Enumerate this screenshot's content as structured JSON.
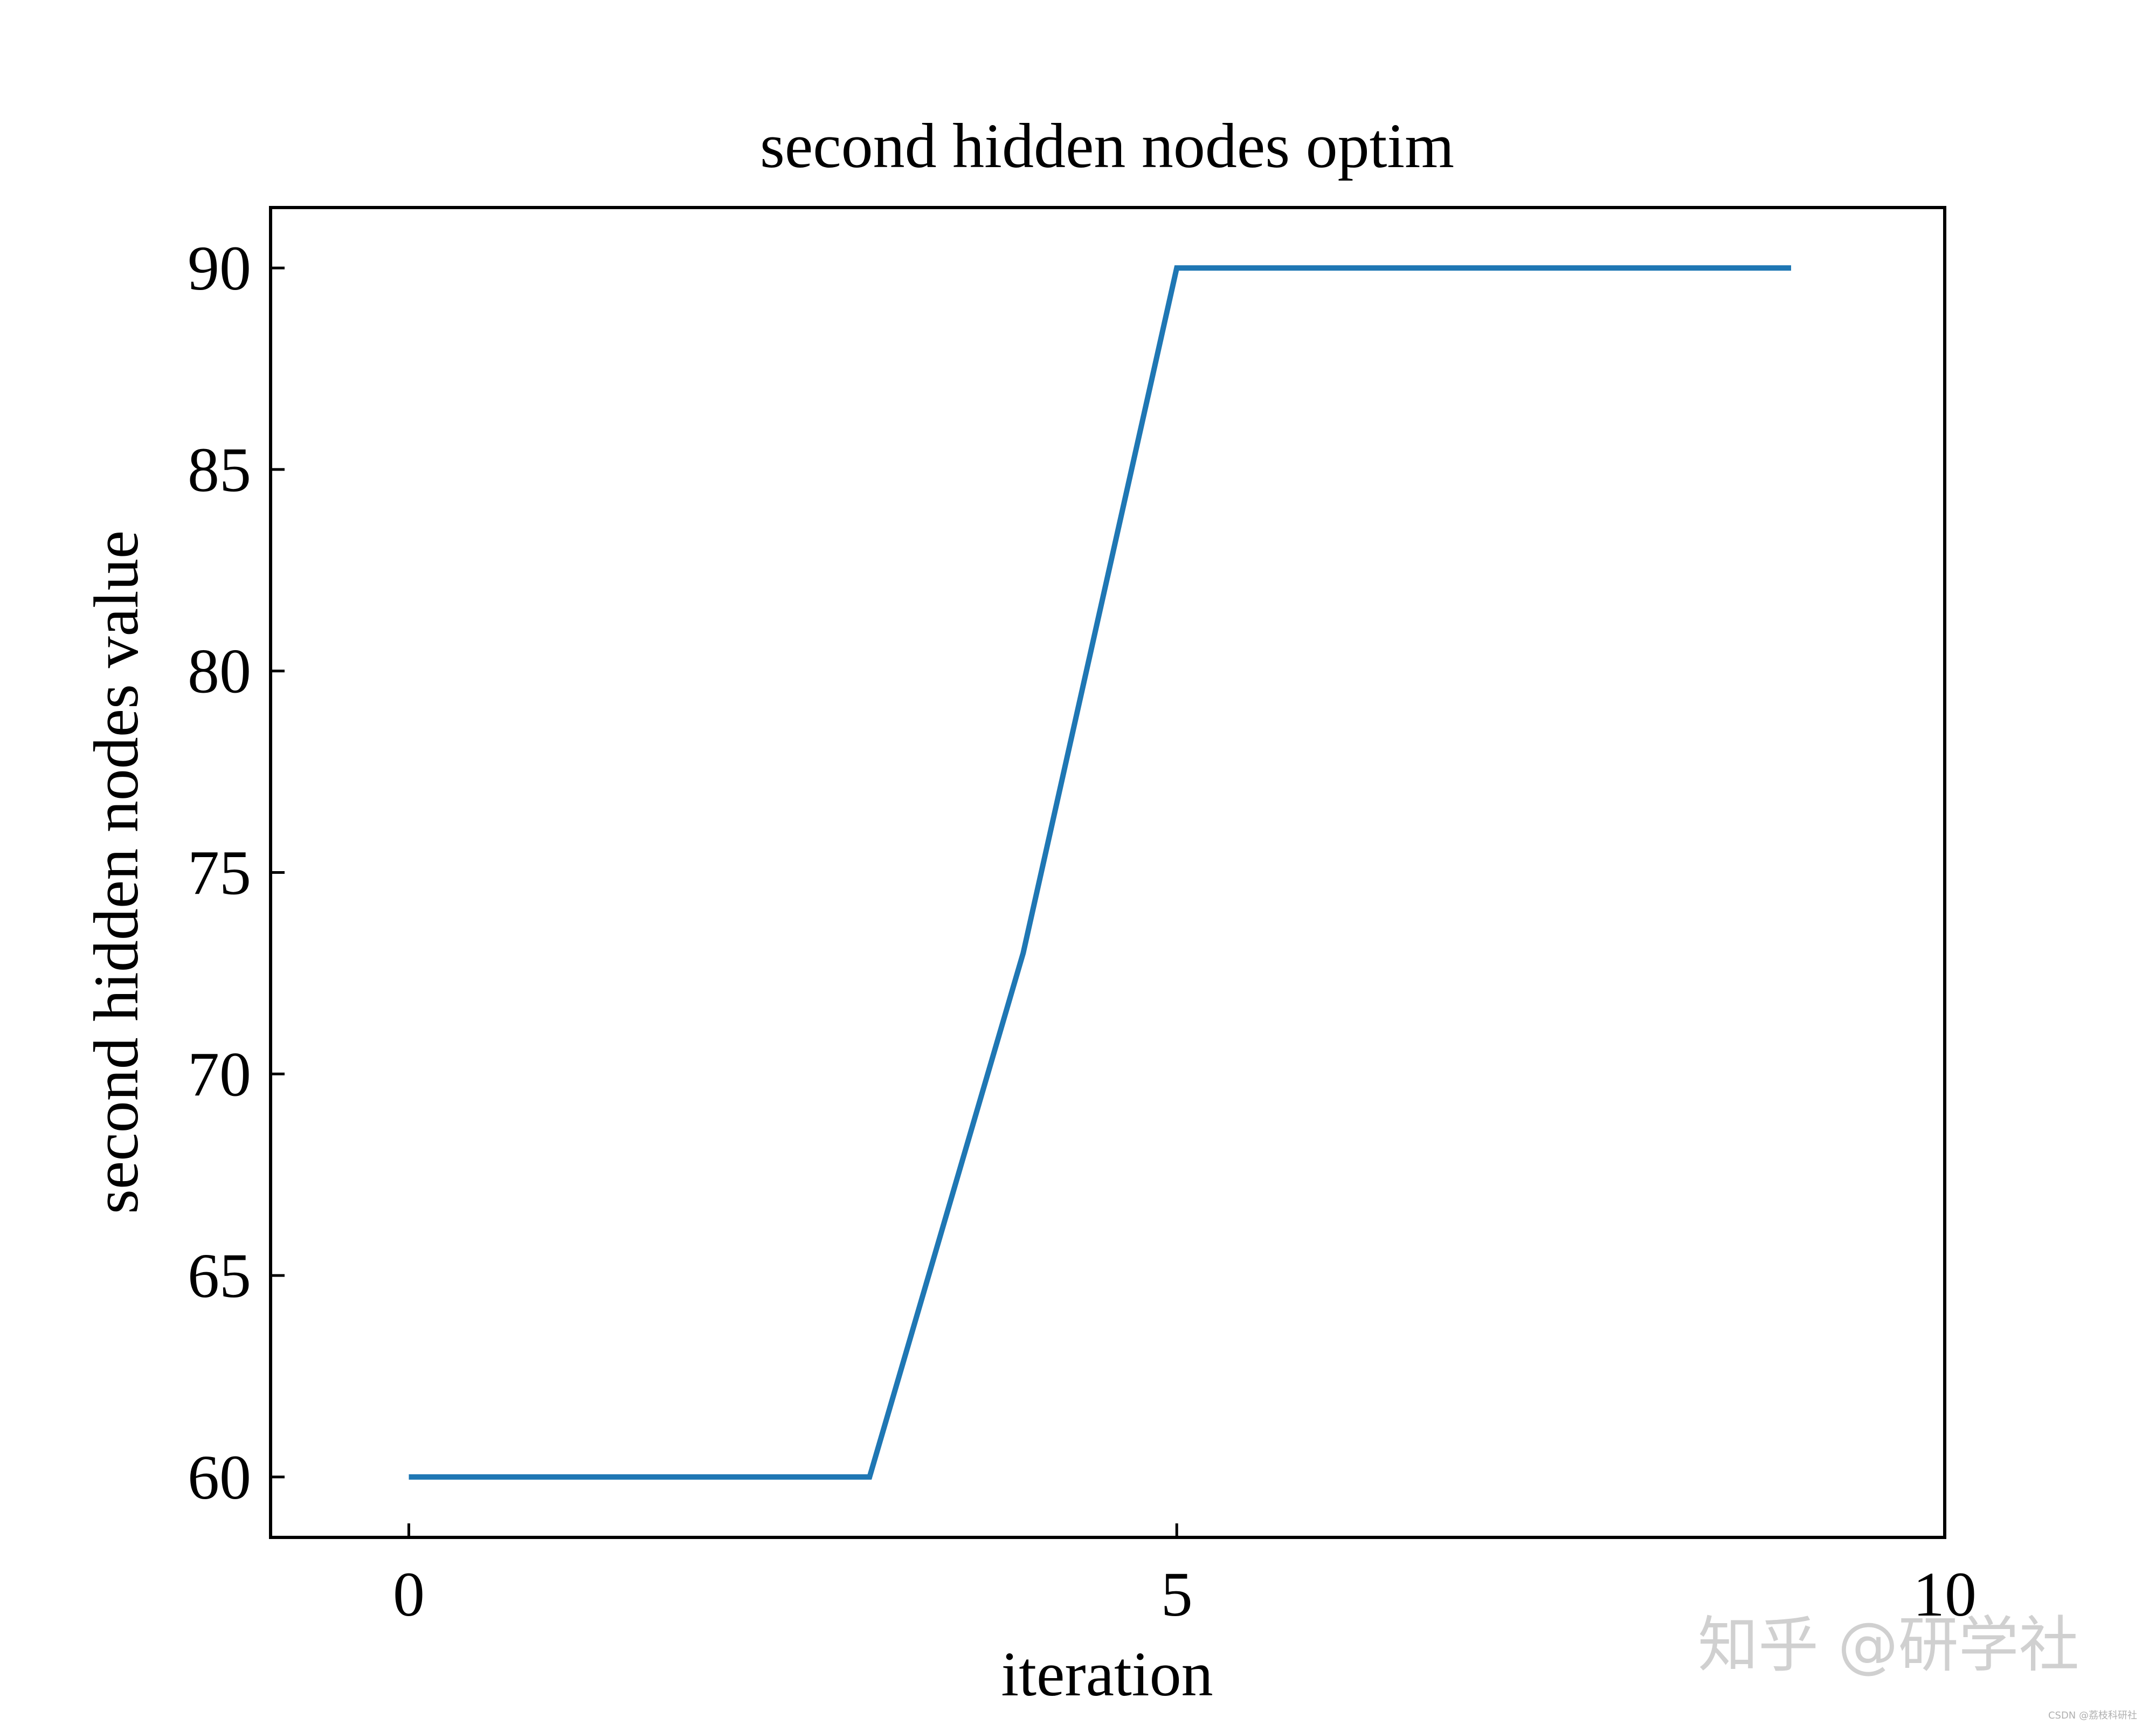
{
  "chart_data": {
    "type": "line",
    "title": "second hidden nodes optim",
    "xlabel": "iteration",
    "ylabel": "second hidden nodes value",
    "xlim": [
      -0.9,
      10
    ],
    "ylim": [
      58.5,
      91.5
    ],
    "xticks": [
      0,
      5,
      10
    ],
    "yticks": [
      60,
      65,
      70,
      75,
      80,
      85,
      90
    ],
    "grid": false,
    "series": [
      {
        "color": "#1f77b4",
        "x": [
          0,
          1,
          2,
          3,
          4,
          5,
          6,
          7,
          8,
          9
        ],
        "y": [
          60,
          60,
          60,
          60,
          73,
          90,
          90,
          90,
          90,
          90
        ]
      }
    ]
  },
  "watermark": {
    "main": "知乎 @研学社",
    "small": "CSDN @荔枝科研社"
  }
}
